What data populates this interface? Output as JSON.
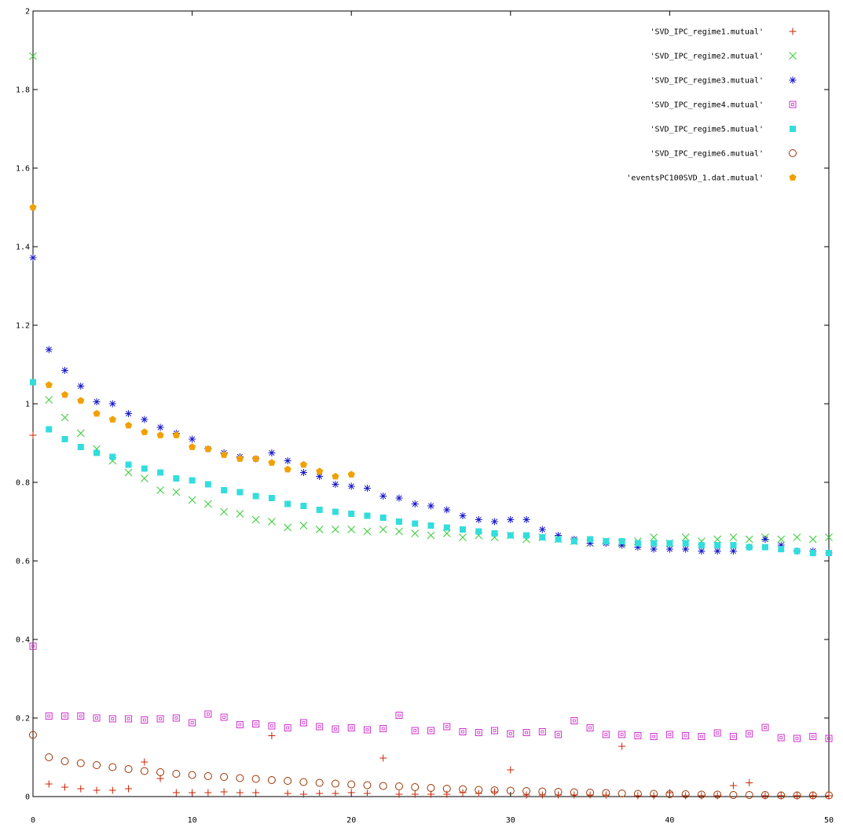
{
  "chart_data": {
    "type": "scatter",
    "title": "",
    "xlabel": "",
    "ylabel": "",
    "xlim": [
      0,
      50
    ],
    "ylim": [
      0,
      2
    ],
    "x_ticks": [
      0,
      10,
      20,
      30,
      40,
      50
    ],
    "y_ticks": [
      0,
      0.2,
      0.4,
      0.6,
      0.8,
      1,
      1.2,
      1.4,
      1.6,
      1.8,
      2
    ],
    "x_tick_labels": [
      "0",
      "10",
      "20",
      "30",
      "40",
      "50"
    ],
    "y_tick_labels": [
      "0",
      "0.2",
      "0.4",
      "0.6",
      "0.8",
      "1",
      "1.2",
      "1.4",
      "1.6",
      "1.8",
      "2"
    ],
    "grid": false,
    "legend_position": "top-right",
    "series": [
      {
        "name": "'SVD_IPC_regime1.mutual'",
        "marker": "plus",
        "color": "#cc2200",
        "x": [
          0,
          1,
          2,
          3,
          4,
          5,
          6,
          7,
          8,
          9,
          10,
          11,
          12,
          13,
          14,
          15,
          16,
          17,
          18,
          19,
          20,
          21,
          22,
          23,
          24,
          25,
          26,
          27,
          28,
          29,
          30,
          31,
          32,
          33,
          34,
          35,
          36,
          37,
          38,
          39,
          40,
          41,
          42,
          43,
          44,
          45,
          46,
          47,
          48,
          49,
          50
        ],
        "y": [
          0.92,
          0.032,
          0.024,
          0.02,
          0.016,
          0.016,
          0.02,
          0.088,
          0.046,
          0.01,
          0.01,
          0.01,
          0.012,
          0.01,
          0.01,
          0.155,
          0.008,
          0.006,
          0.008,
          0.008,
          0.01,
          0.008,
          0.098,
          0.006,
          0.006,
          0.006,
          0.006,
          0.01,
          0.008,
          0.012,
          0.068,
          0.004,
          0.004,
          0.004,
          0.004,
          0.004,
          0.004,
          0.128,
          0.002,
          0.002,
          0.01,
          0.002,
          0.002,
          0.002,
          0.028,
          0.035,
          0.002,
          0.002,
          0.002,
          0.002,
          0.002
        ]
      },
      {
        "name": "'SVD_IPC_regime2.mutual'",
        "marker": "cross",
        "color": "#33cc33",
        "x": [
          0,
          1,
          2,
          3,
          4,
          5,
          6,
          7,
          8,
          9,
          10,
          11,
          12,
          13,
          14,
          15,
          16,
          17,
          18,
          19,
          20,
          21,
          22,
          23,
          24,
          25,
          26,
          27,
          28,
          29,
          30,
          31,
          32,
          33,
          34,
          35,
          36,
          37,
          38,
          39,
          40,
          41,
          42,
          43,
          44,
          45,
          46,
          47,
          48,
          49,
          50
        ],
        "y": [
          1.885,
          1.01,
          0.965,
          0.925,
          0.885,
          0.855,
          0.825,
          0.81,
          0.78,
          0.775,
          0.755,
          0.745,
          0.725,
          0.72,
          0.705,
          0.7,
          0.685,
          0.69,
          0.68,
          0.68,
          0.68,
          0.675,
          0.68,
          0.675,
          0.67,
          0.665,
          0.67,
          0.66,
          0.665,
          0.66,
          0.665,
          0.655,
          0.66,
          0.655,
          0.65,
          0.645,
          0.65,
          0.645,
          0.65,
          0.66,
          0.645,
          0.66,
          0.65,
          0.655,
          0.66,
          0.655,
          0.66,
          0.655,
          0.66,
          0.655,
          0.66
        ]
      },
      {
        "name": "'SVD_IPC_regime3.mutual'",
        "marker": "asterisk",
        "color": "#1a1acc",
        "x": [
          0,
          1,
          2,
          3,
          4,
          5,
          6,
          7,
          8,
          9,
          10,
          11,
          12,
          13,
          14,
          15,
          16,
          17,
          18,
          19,
          20,
          21,
          22,
          23,
          24,
          25,
          26,
          27,
          28,
          29,
          30,
          31,
          32,
          33,
          34,
          35,
          36,
          37,
          38,
          39,
          40,
          41,
          42,
          43,
          44,
          45,
          46,
          47,
          48,
          49,
          50
        ],
        "y": [
          1.372,
          1.138,
          1.085,
          1.045,
          1.005,
          1.0,
          0.975,
          0.96,
          0.94,
          0.925,
          0.91,
          0.885,
          0.875,
          0.865,
          0.86,
          0.875,
          0.855,
          0.825,
          0.815,
          0.795,
          0.79,
          0.785,
          0.765,
          0.76,
          0.745,
          0.74,
          0.73,
          0.715,
          0.705,
          0.7,
          0.705,
          0.705,
          0.68,
          0.665,
          0.655,
          0.645,
          0.645,
          0.64,
          0.635,
          0.63,
          0.63,
          0.63,
          0.625,
          0.625,
          0.625,
          0.635,
          0.655,
          0.64,
          0.625,
          0.625,
          0.62
        ]
      },
      {
        "name": "'SVD_IPC_regime4.mutual'",
        "marker": "open-square",
        "color": "#cc33cc",
        "x": [
          0,
          1,
          2,
          3,
          4,
          5,
          6,
          7,
          8,
          9,
          10,
          11,
          12,
          13,
          14,
          15,
          16,
          17,
          18,
          19,
          20,
          21,
          22,
          23,
          24,
          25,
          26,
          27,
          28,
          29,
          30,
          31,
          32,
          33,
          34,
          35,
          36,
          37,
          38,
          39,
          40,
          41,
          42,
          43,
          44,
          45,
          46,
          47,
          48,
          49,
          50
        ],
        "y": [
          0.383,
          0.205,
          0.205,
          0.205,
          0.2,
          0.198,
          0.198,
          0.195,
          0.198,
          0.2,
          0.188,
          0.21,
          0.202,
          0.183,
          0.185,
          0.18,
          0.175,
          0.188,
          0.178,
          0.172,
          0.175,
          0.17,
          0.173,
          0.207,
          0.168,
          0.168,
          0.178,
          0.165,
          0.163,
          0.168,
          0.16,
          0.163,
          0.165,
          0.158,
          0.193,
          0.175,
          0.158,
          0.158,
          0.155,
          0.153,
          0.158,
          0.155,
          0.153,
          0.162,
          0.153,
          0.16,
          0.176,
          0.15,
          0.148,
          0.153,
          0.148
        ]
      },
      {
        "name": "'SVD_IPC_regime5.mutual'",
        "marker": "filled-square",
        "color": "#33dddd",
        "x": [
          0,
          1,
          2,
          3,
          4,
          5,
          6,
          7,
          8,
          9,
          10,
          11,
          12,
          13,
          14,
          15,
          16,
          17,
          18,
          19,
          20,
          21,
          22,
          23,
          24,
          25,
          26,
          27,
          28,
          29,
          30,
          31,
          32,
          33,
          34,
          35,
          36,
          37,
          38,
          39,
          40,
          41,
          42,
          43,
          44,
          45,
          46,
          47,
          48,
          49,
          50
        ],
        "y": [
          1.055,
          0.935,
          0.91,
          0.89,
          0.875,
          0.865,
          0.845,
          0.835,
          0.825,
          0.81,
          0.805,
          0.795,
          0.78,
          0.775,
          0.765,
          0.76,
          0.745,
          0.74,
          0.73,
          0.725,
          0.72,
          0.715,
          0.71,
          0.7,
          0.695,
          0.69,
          0.685,
          0.68,
          0.675,
          0.67,
          0.665,
          0.665,
          0.66,
          0.655,
          0.65,
          0.655,
          0.65,
          0.65,
          0.645,
          0.645,
          0.645,
          0.645,
          0.64,
          0.64,
          0.64,
          0.635,
          0.635,
          0.63,
          0.625,
          0.62,
          0.62
        ]
      },
      {
        "name": "'SVD_IPC_regime6.mutual'",
        "marker": "open-circle",
        "color": "#993300",
        "x": [
          0,
          1,
          2,
          3,
          4,
          5,
          6,
          7,
          8,
          9,
          10,
          11,
          12,
          13,
          14,
          15,
          16,
          17,
          18,
          19,
          20,
          21,
          22,
          23,
          24,
          25,
          26,
          27,
          28,
          29,
          30,
          31,
          32,
          33,
          34,
          35,
          36,
          37,
          38,
          39,
          40,
          41,
          42,
          43,
          44,
          45,
          46,
          47,
          48,
          49,
          50
        ],
        "y": [
          0.157,
          0.1,
          0.09,
          0.085,
          0.08,
          0.075,
          0.07,
          0.065,
          0.062,
          0.058,
          0.055,
          0.052,
          0.05,
          0.047,
          0.045,
          0.042,
          0.04,
          0.037,
          0.035,
          0.033,
          0.031,
          0.029,
          0.027,
          0.026,
          0.024,
          0.022,
          0.02,
          0.019,
          0.017,
          0.016,
          0.015,
          0.014,
          0.013,
          0.012,
          0.011,
          0.01,
          0.009,
          0.008,
          0.007,
          0.007,
          0.006,
          0.006,
          0.005,
          0.005,
          0.004,
          0.004,
          0.004,
          0.003,
          0.003,
          0.003,
          0.003
        ]
      },
      {
        "name": "'eventsPC100SVD_1.dat.mutual'",
        "marker": "filled-pentagon",
        "color": "#f2a000",
        "x": [
          0,
          1,
          2,
          3,
          4,
          5,
          6,
          7,
          8,
          9,
          10,
          11,
          12,
          13,
          14,
          15,
          16,
          17,
          18,
          19,
          20
        ],
        "y": [
          1.5,
          1.048,
          1.023,
          1.008,
          0.975,
          0.96,
          0.945,
          0.928,
          0.92,
          0.92,
          0.89,
          0.885,
          0.87,
          0.86,
          0.86,
          0.85,
          0.833,
          0.845,
          0.828,
          0.815,
          0.82
        ]
      }
    ]
  }
}
